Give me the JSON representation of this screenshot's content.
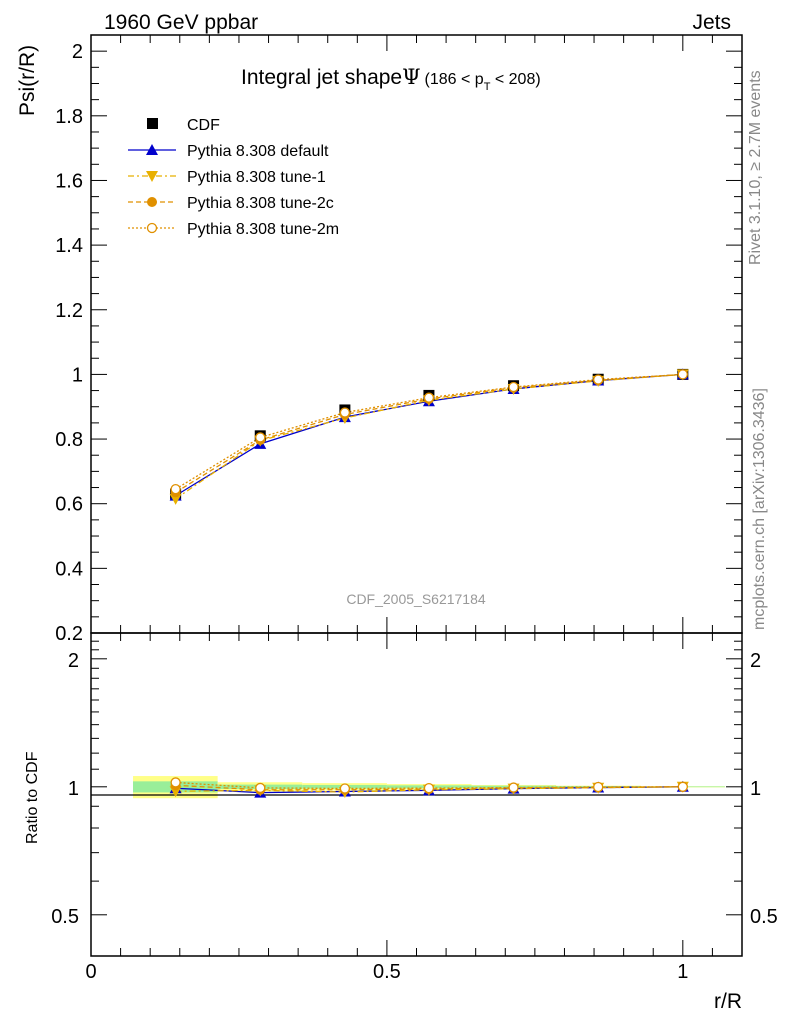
{
  "header": {
    "beam": "1960 GeV ppbar",
    "process": "Jets"
  },
  "side_labels": {
    "rivet": "Rivet 3.1.10, ≥ 2.7M events",
    "mcplots": "mcplots.cern.ch [arXiv:1306.3436]"
  },
  "watermark": "CDF_2005_S6217184",
  "colors": {
    "cdf": "#000000",
    "default": "#0000cc",
    "tune1": "#e8b000",
    "tune2c": "#e09000",
    "tune2m": "#e09000",
    "band_inner": "#99ee99",
    "band_outer": "#ffff88"
  },
  "chart_data": [
    {
      "type": "line",
      "title_main": "Integral jet shape",
      "title_symbol": "Ψ",
      "title_range": "(186 < p",
      "title_range_sub": "T",
      "title_range_end": " < 208)",
      "ylabel": "Psi(r/R)",
      "xlabel": "",
      "xlim": [
        0,
        1.1
      ],
      "ylim": [
        0.2,
        2.05
      ],
      "yticks": [
        0.2,
        0.4,
        0.6,
        0.8,
        1,
        1.2,
        1.4,
        1.6,
        1.8,
        2
      ],
      "ytick_labels": [
        "0.2",
        "0.4",
        "0.6",
        "0.8",
        "1",
        "1.2",
        "1.4",
        "1.6",
        "1.8",
        "2"
      ],
      "legend_position": "top-left",
      "x": [
        0.143,
        0.286,
        0.429,
        0.571,
        0.714,
        0.857,
        1.0
      ],
      "series": [
        {
          "name": "CDF",
          "key": "cdf",
          "marker": "square",
          "values": [
            0.63,
            0.81,
            0.89,
            0.935,
            0.965,
            0.985,
            1.0
          ]
        },
        {
          "name": "Pythia 8.308 default",
          "key": "default",
          "marker": "triangle-up",
          "dash": "",
          "values": [
            0.625,
            0.785,
            0.868,
            0.917,
            0.955,
            0.981,
            1.0
          ]
        },
        {
          "name": "Pythia 8.308 tune-1",
          "key": "tune1",
          "marker": "triangle-down",
          "dash": "6,3,2,3",
          "values": [
            0.615,
            0.795,
            0.865,
            0.92,
            0.955,
            0.98,
            1.0
          ]
        },
        {
          "name": "Pythia 8.308 tune-2c",
          "key": "tune2c",
          "marker": "circle",
          "dash": "5,3",
          "values": [
            0.635,
            0.797,
            0.876,
            0.924,
            0.959,
            0.982,
            1.0
          ]
        },
        {
          "name": "Pythia 8.308 tune-2m",
          "key": "tune2m",
          "marker": "circle-open",
          "dash": "2,2",
          "values": [
            0.645,
            0.805,
            0.882,
            0.928,
            0.961,
            0.984,
            1.0
          ]
        }
      ]
    },
    {
      "type": "line",
      "ylabel": "Ratio to CDF",
      "xlabel": "r/R",
      "xlim": [
        0,
        1.1
      ],
      "ylim": [
        0.4,
        2.3
      ],
      "log_y": true,
      "yticks": [
        0.5,
        1,
        2
      ],
      "ytick_labels": [
        "0.5",
        "1",
        "2"
      ],
      "xticks": [
        0,
        0.5,
        1
      ],
      "xtick_labels": [
        "0",
        "0.5",
        "1"
      ],
      "x": [
        0.143,
        0.286,
        0.429,
        0.571,
        0.714,
        0.857,
        1.0
      ],
      "x_bins": [
        [
          0.071,
          0.214
        ],
        [
          0.214,
          0.357
        ],
        [
          0.357,
          0.5
        ],
        [
          0.5,
          0.643
        ],
        [
          0.643,
          0.786
        ],
        [
          0.786,
          0.929
        ],
        [
          0.929,
          1.071
        ]
      ],
      "band_inner": [
        0.03,
        0.012,
        0.01,
        0.008,
        0.006,
        0.004,
        0.002
      ],
      "band_outer": [
        0.06,
        0.025,
        0.02,
        0.015,
        0.01,
        0.006,
        0.003
      ],
      "series": [
        {
          "key": "default",
          "marker": "triangle-up",
          "dash": "",
          "values": [
            0.992,
            0.969,
            0.975,
            0.981,
            0.99,
            0.996,
            1.0
          ]
        },
        {
          "key": "tune1",
          "marker": "triangle-down",
          "dash": "6,3,2,3",
          "values": [
            0.976,
            0.981,
            0.972,
            0.984,
            0.99,
            0.995,
            1.0
          ]
        },
        {
          "key": "tune2c",
          "marker": "circle",
          "dash": "5,3",
          "values": [
            1.008,
            0.984,
            0.984,
            0.988,
            0.994,
            0.997,
            1.0
          ]
        },
        {
          "key": "tune2m",
          "marker": "circle-open",
          "dash": "2,2",
          "values": [
            1.024,
            0.994,
            0.991,
            0.993,
            0.996,
            0.999,
            1.0
          ]
        }
      ]
    }
  ]
}
